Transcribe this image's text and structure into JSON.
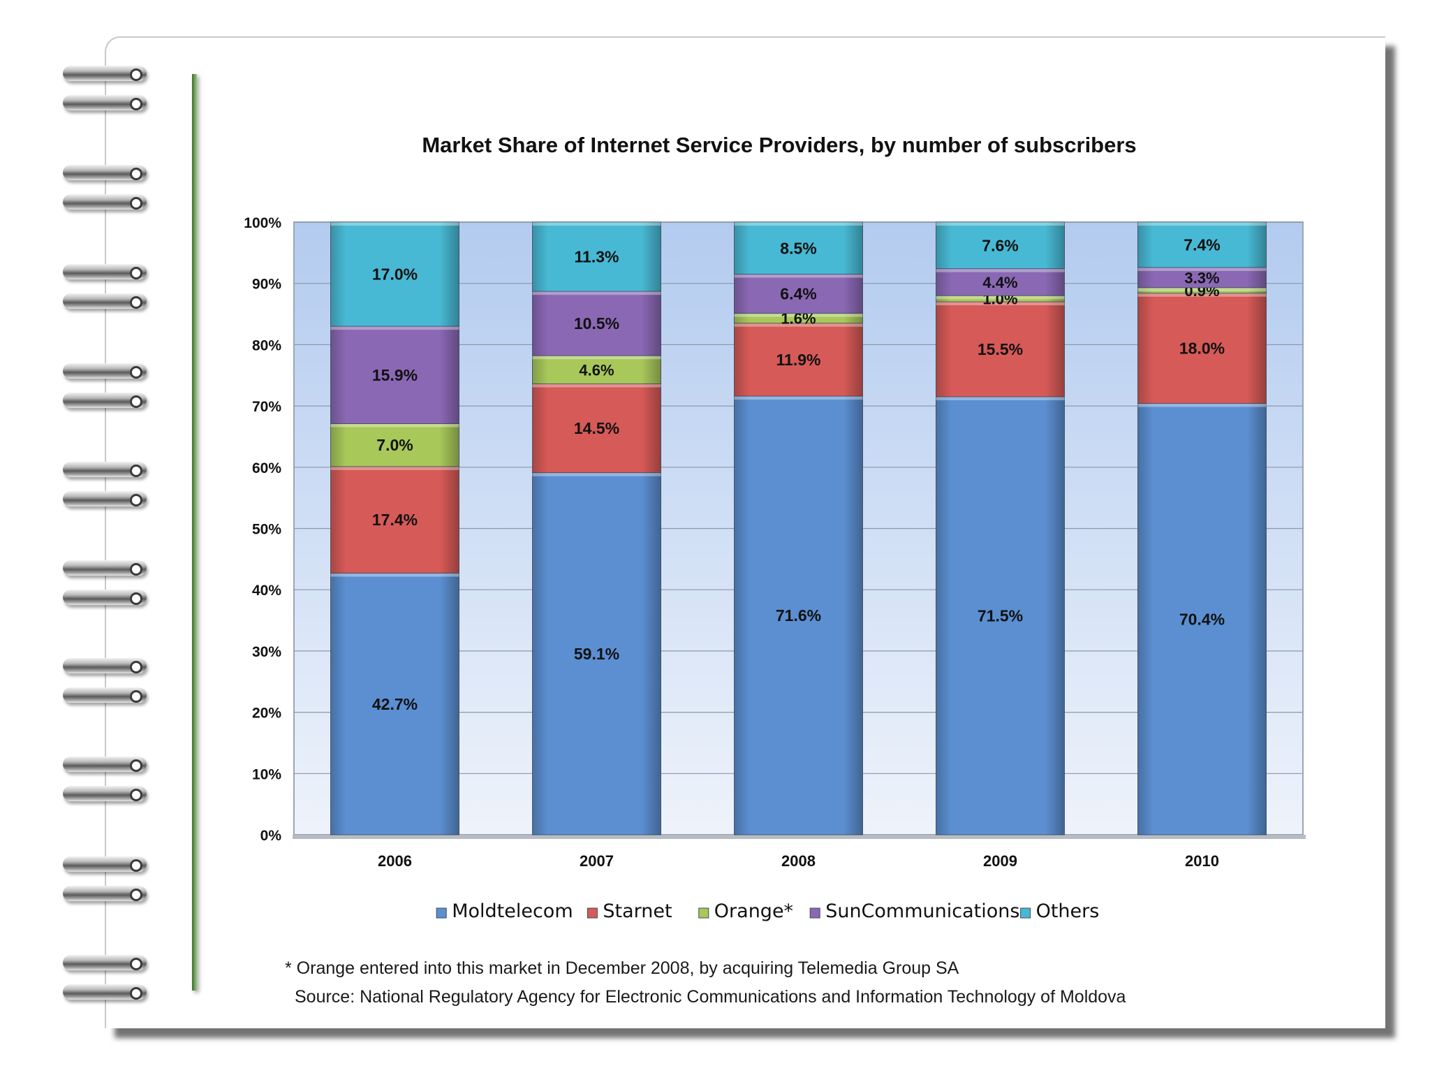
{
  "chart_data": {
    "type": "bar",
    "stacked": true,
    "title": "Market Share of Internet Service Providers, by number of subscribers",
    "categories": [
      "2006",
      "2007",
      "2008",
      "2009",
      "2010"
    ],
    "series": [
      {
        "name": "Moldtelecom",
        "color": "#5b8fd1",
        "values": [
          42.7,
          59.1,
          71.6,
          71.5,
          70.4
        ],
        "labels": [
          "42.7%",
          "59.1%",
          "71.6%",
          "71.5%",
          "70.4%"
        ]
      },
      {
        "name": "Starnet",
        "color": "#d65a57",
        "values": [
          17.4,
          14.5,
          11.9,
          15.5,
          18.0
        ],
        "labels": [
          "17.4%",
          "14.5%",
          "11.9%",
          "15.5%",
          "18.0%"
        ]
      },
      {
        "name": "Orange*",
        "color": "#a8c85a",
        "values": [
          7.0,
          4.6,
          1.6,
          1.0,
          0.9
        ],
        "labels": [
          "7.0%",
          "4.6%",
          "1.6%",
          "1.0%",
          "0.9%"
        ]
      },
      {
        "name": "SunCommunications",
        "color": "#8a68b4",
        "values": [
          15.9,
          10.5,
          6.4,
          4.4,
          3.3
        ],
        "labels": [
          "15.9%",
          "10.5%",
          "6.4%",
          "4.4%",
          "3.3%"
        ]
      },
      {
        "name": "Others",
        "color": "#48b9d4",
        "values": [
          17.0,
          11.3,
          8.5,
          7.6,
          7.4
        ],
        "labels": [
          "17.0%",
          "11.3%",
          "8.5%",
          "7.6%",
          "7.4%"
        ]
      }
    ],
    "ylim": [
      0,
      100
    ],
    "yticks": [
      "0%",
      "10%",
      "20%",
      "30%",
      "40%",
      "50%",
      "60%",
      "70%",
      "80%",
      "90%",
      "100%"
    ],
    "xlabel": "",
    "ylabel": "",
    "grid": true,
    "legend": "bottom"
  },
  "notes": {
    "footnote": "* Orange entered into this market in December 2008, by acquiring Telemedia Group SA",
    "source": "Source: National Regulatory Agency for Electronic Communications and Information Technology of Moldova"
  }
}
